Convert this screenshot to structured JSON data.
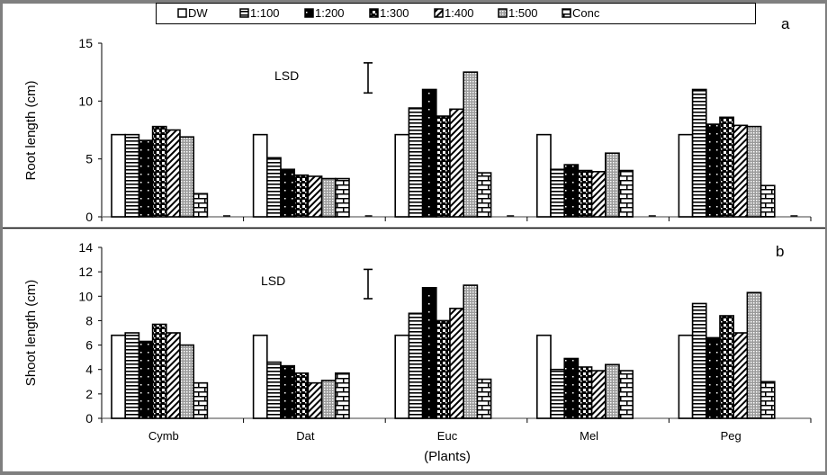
{
  "legend": {
    "entries": [
      "DW",
      "1:100",
      "1:200",
      "1:300",
      "1:400",
      "1:500",
      "Conc"
    ]
  },
  "chart_data": [
    {
      "type": "bar",
      "panel_label": "a",
      "title": "",
      "xlabel": "",
      "ylabel": "Root length (cm)",
      "ylim": [
        0,
        15
      ],
      "yticks": [
        0,
        5,
        10,
        15
      ],
      "categories": [
        "Cymb",
        "Dat",
        "Euc",
        "Mel",
        "Peg"
      ],
      "series": [
        {
          "name": "DW",
          "values": [
            7.1,
            7.1,
            7.1,
            7.1,
            7.1
          ]
        },
        {
          "name": "1:100",
          "values": [
            7.1,
            5.1,
            9.4,
            4.1,
            11.0
          ]
        },
        {
          "name": "1:200",
          "values": [
            6.6,
            4.1,
            11.0,
            4.5,
            8.0
          ]
        },
        {
          "name": "1:300",
          "values": [
            7.8,
            3.6,
            8.7,
            4.0,
            8.6
          ]
        },
        {
          "name": "1:400",
          "values": [
            7.5,
            3.5,
            9.3,
            3.9,
            7.9
          ]
        },
        {
          "name": "1:500",
          "values": [
            6.9,
            3.3,
            12.5,
            5.5,
            7.8
          ]
        },
        {
          "name": "Conc",
          "values": [
            2.0,
            3.3,
            3.8,
            4.0,
            2.7
          ]
        }
      ],
      "annotation": {
        "text": "LSD",
        "lsd_low": 10.7,
        "lsd_high": 13.3
      },
      "legend": "top",
      "grid": false
    },
    {
      "type": "bar",
      "panel_label": "b",
      "title": "",
      "xlabel": "(Plants)",
      "ylabel": "Shoot length (cm)",
      "ylim": [
        0,
        14
      ],
      "yticks": [
        0,
        2,
        4,
        6,
        8,
        10,
        12,
        14
      ],
      "categories": [
        "Cymb",
        "Dat",
        "Euc",
        "Mel",
        "Peg"
      ],
      "series": [
        {
          "name": "DW",
          "values": [
            6.8,
            6.8,
            6.8,
            6.8,
            6.8
          ]
        },
        {
          "name": "1:100",
          "values": [
            7.0,
            4.6,
            8.6,
            4.0,
            9.4
          ]
        },
        {
          "name": "1:200",
          "values": [
            6.3,
            4.3,
            10.7,
            4.9,
            6.6
          ]
        },
        {
          "name": "1:300",
          "values": [
            7.7,
            3.7,
            8.0,
            4.2,
            8.4
          ]
        },
        {
          "name": "1:400",
          "values": [
            7.0,
            2.9,
            9.0,
            3.9,
            7.0
          ]
        },
        {
          "name": "1:500",
          "values": [
            6.0,
            3.1,
            10.9,
            4.4,
            10.3
          ]
        },
        {
          "name": "Conc",
          "values": [
            2.9,
            3.7,
            3.2,
            3.9,
            3.0
          ]
        }
      ],
      "annotation": {
        "text": "LSD",
        "lsd_low": 9.8,
        "lsd_high": 12.2
      },
      "legend": "top",
      "grid": false
    }
  ]
}
